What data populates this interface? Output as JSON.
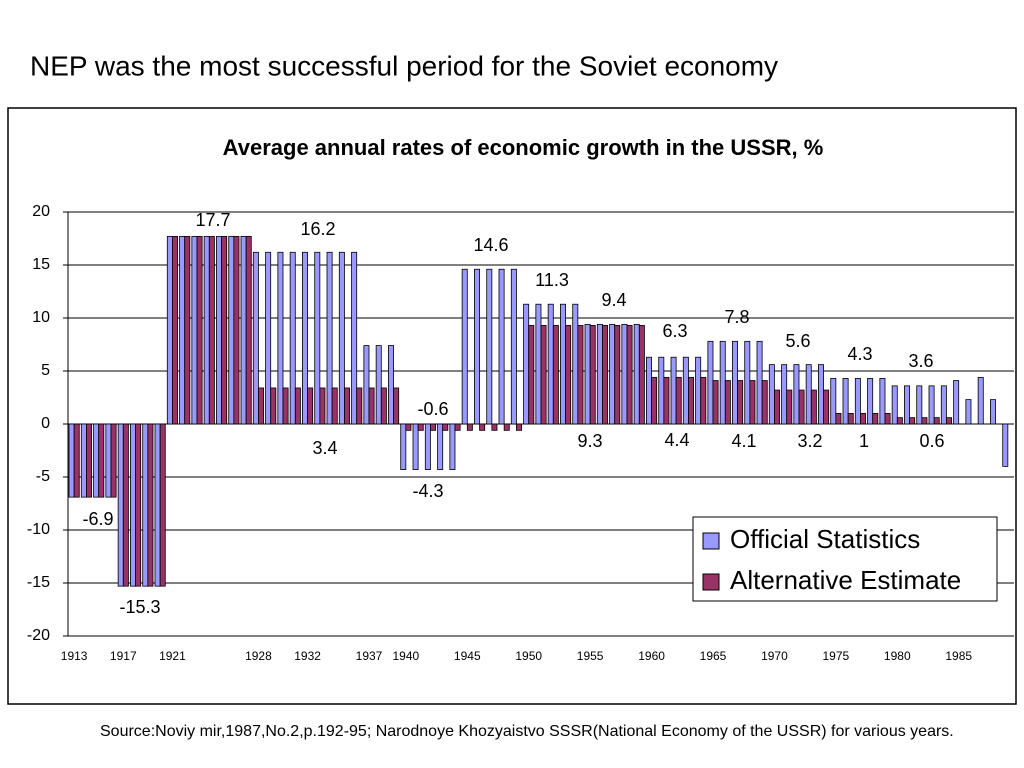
{
  "slide_title": "NEP was the most successful period for the Soviet economy",
  "source": "Source:Noviy mir,1987,No.2,p.192-95; Narodnoye Khozyaistvo SSSR(National Economy   of the USSR) for various years.",
  "chart_data": {
    "type": "bar",
    "title": "Average annual rates of economic growth in the USSR, %",
    "categories": [
      "1913",
      null,
      null,
      null,
      "1917",
      null,
      null,
      null,
      "1921",
      null,
      null,
      null,
      null,
      null,
      null,
      "1928",
      null,
      null,
      null,
      "1932",
      null,
      null,
      null,
      null,
      "1937",
      null,
      null,
      "1940",
      null,
      null,
      null,
      null,
      "1945",
      null,
      null,
      null,
      null,
      "1950",
      null,
      null,
      null,
      null,
      "1955",
      null,
      null,
      null,
      null,
      "1960",
      null,
      null,
      null,
      null,
      "1965",
      null,
      null,
      null,
      null,
      "1970",
      null,
      null,
      null,
      null,
      "1975",
      null,
      null,
      null,
      null,
      "1980",
      null,
      null,
      null,
      null,
      "1985",
      null,
      null,
      null,
      null
    ],
    "series": [
      {
        "name": "Official Statistics",
        "color": "#9999ff",
        "values": [
          -6.9,
          -6.9,
          -6.9,
          -6.9,
          -15.3,
          -15.3,
          -15.3,
          -15.3,
          17.7,
          17.7,
          17.7,
          17.7,
          17.7,
          17.7,
          17.7,
          16.2,
          16.2,
          16.2,
          16.2,
          16.2,
          16.2,
          16.2,
          16.2,
          16.2,
          7.4,
          7.4,
          7.4,
          -4.3,
          -4.3,
          -4.3,
          -4.3,
          -4.3,
          14.6,
          14.6,
          14.6,
          14.6,
          14.6,
          11.3,
          11.3,
          11.3,
          11.3,
          11.3,
          9.4,
          9.4,
          9.4,
          9.4,
          9.4,
          6.3,
          6.3,
          6.3,
          6.3,
          6.3,
          7.8,
          7.8,
          7.8,
          7.8,
          7.8,
          5.6,
          5.6,
          5.6,
          5.6,
          5.6,
          4.3,
          4.3,
          4.3,
          4.3,
          4.3,
          3.6,
          3.6,
          3.6,
          3.6,
          3.6,
          4.1,
          2.3,
          4.4,
          2.3,
          -4
        ]
      },
      {
        "name": "Alternative Estimate",
        "color": "#993366",
        "values": [
          -6.9,
          -6.9,
          -6.9,
          -6.9,
          -15.3,
          -15.3,
          -15.3,
          -15.3,
          17.7,
          17.7,
          17.7,
          17.7,
          17.7,
          17.7,
          17.7,
          3.4,
          3.4,
          3.4,
          3.4,
          3.4,
          3.4,
          3.4,
          3.4,
          3.4,
          3.4,
          3.4,
          3.4,
          -0.6,
          -0.6,
          -0.6,
          -0.6,
          -0.6,
          -0.6,
          -0.6,
          -0.6,
          -0.6,
          -0.6,
          9.3,
          9.3,
          9.3,
          9.3,
          9.3,
          9.3,
          9.3,
          9.3,
          9.3,
          9.3,
          4.4,
          4.4,
          4.4,
          4.4,
          4.4,
          4.1,
          4.1,
          4.1,
          4.1,
          4.1,
          3.2,
          3.2,
          3.2,
          3.2,
          3.2,
          1,
          1,
          1,
          1,
          1,
          0.6,
          0.6,
          0.6,
          0.6,
          0.6,
          null,
          null,
          null,
          null,
          null
        ]
      }
    ],
    "ylim": [
      -20,
      20
    ],
    "yticks": [
      -20,
      -15,
      -10,
      -5,
      0,
      5,
      10,
      15,
      20
    ],
    "grid": true,
    "legend": "lower right"
  }
}
